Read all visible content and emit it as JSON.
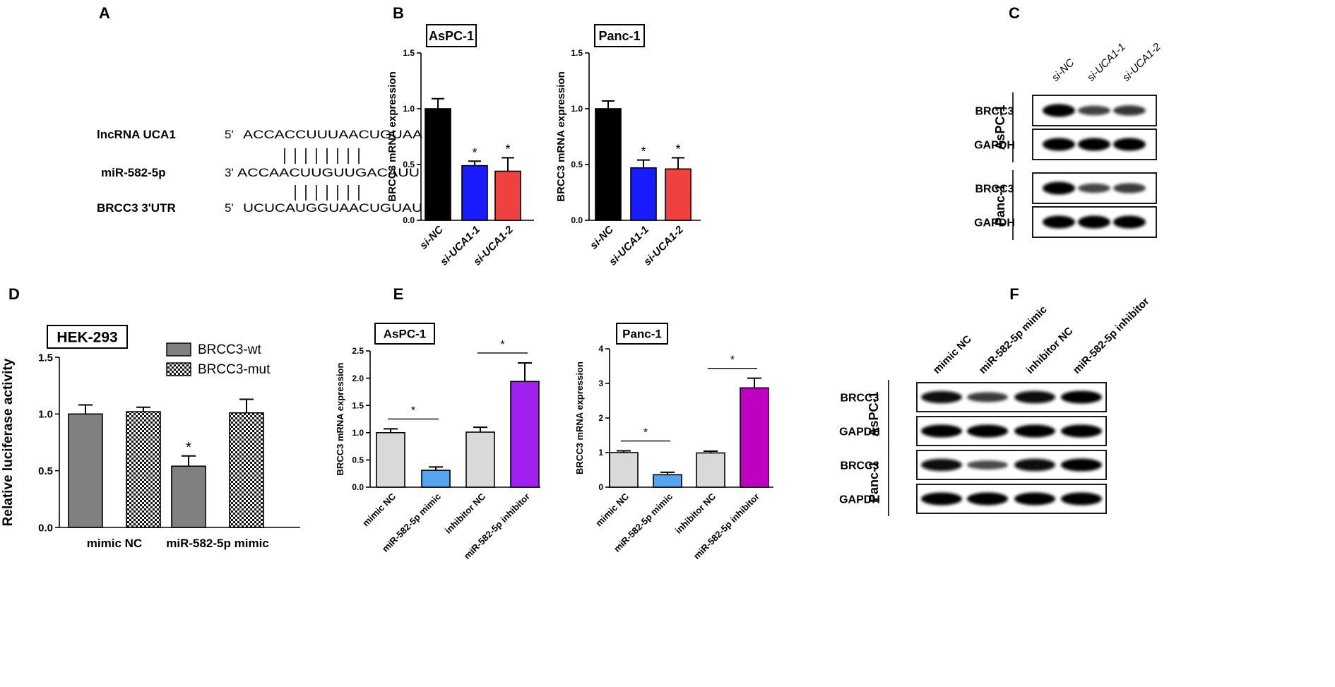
{
  "panels": {
    "A": "A",
    "B": "B",
    "C": "C",
    "D": "D",
    "E": "E",
    "F": "F"
  },
  "panel_a": {
    "rows": [
      {
        "name": "lncRNA UCA1",
        "prefix": "5'",
        "seq": "ACCACCUUUAACUGUAA"
      },
      {
        "name": "miR-582-5p",
        "prefix": "3'",
        "seq": "ACCAACUUGUUGACAUU"
      },
      {
        "name": "BRCC3 3'UTR",
        "prefix": "5'",
        "seq": "UCUCAUGGUAACUGUAU"
      }
    ],
    "pairs_top": 8,
    "pairs_bottom": 7
  },
  "blots": {
    "c": {
      "lanes": [
        "si-NC",
        "si-UCA1-1",
        "si-UCA1-2"
      ],
      "groups": [
        {
          "cell": "AsPC-1",
          "rows": [
            {
              "label": "BRCC3",
              "intensity": [
                1.0,
                0.45,
                0.55
              ]
            },
            {
              "label": "GAPDH",
              "intensity": [
                1,
                1,
                1
              ]
            }
          ]
        },
        {
          "cell": "Panc-1",
          "rows": [
            {
              "label": "BRCC3",
              "intensity": [
                1.0,
                0.4,
                0.5
              ]
            },
            {
              "label": "GAPDH",
              "intensity": [
                1,
                1,
                1
              ]
            }
          ]
        }
      ]
    },
    "f": {
      "lanes": [
        "mimic NC",
        "miR-582-5p mimic",
        "inhibitor NC",
        "miR-582-5p inhibitor"
      ],
      "groups": [
        {
          "cell": "AsPC-1",
          "rows": [
            {
              "label": "BRCC3",
              "intensity": [
                0.9,
                0.5,
                0.95,
                1.0
              ]
            },
            {
              "label": "GAPDH",
              "intensity": [
                1,
                1,
                1,
                1
              ]
            }
          ]
        },
        {
          "cell": "Panc-1",
          "rows": [
            {
              "label": "BRCC3",
              "intensity": [
                0.9,
                0.35,
                0.95,
                1.0
              ]
            },
            {
              "label": "GAPDH",
              "intensity": [
                1,
                1,
                1,
                1
              ]
            }
          ]
        }
      ]
    }
  },
  "chart_data": [
    {
      "id": "b1",
      "type": "bar",
      "title": "AsPC-1",
      "ylabel": "BRCC3 mRNA expression",
      "ylim": [
        0,
        1.5
      ],
      "yticks": [
        0.0,
        0.5,
        1.0,
        1.5
      ],
      "tick_decimals": 1,
      "categories": [
        "si-NC",
        "si-UCA1-1",
        "si-UCA1-2"
      ],
      "values": [
        1.0,
        0.49,
        0.44
      ],
      "errors": [
        0.09,
        0.04,
        0.12
      ],
      "colors": [
        "#000000",
        "#1a1aff",
        "#f04040"
      ],
      "sig": [
        "",
        "*",
        "*"
      ]
    },
    {
      "id": "b2",
      "type": "bar",
      "title": "Panc-1",
      "ylabel": "BRCC3 mRNA expression",
      "ylim": [
        0,
        1.5
      ],
      "yticks": [
        0.0,
        0.5,
        1.0,
        1.5
      ],
      "tick_decimals": 1,
      "categories": [
        "si-NC",
        "si-UCA1-1",
        "si-UCA1-2"
      ],
      "values": [
        1.0,
        0.47,
        0.46
      ],
      "errors": [
        0.07,
        0.07,
        0.1
      ],
      "colors": [
        "#000000",
        "#1a1aff",
        "#f04040"
      ],
      "sig": [
        "",
        "*",
        "*"
      ]
    },
    {
      "id": "d",
      "type": "bar",
      "title": "HEK-293",
      "ylabel": "Relative luciferase activity",
      "ylim": [
        0,
        1.5
      ],
      "yticks": [
        0.0,
        0.5,
        1.0,
        1.5
      ],
      "tick_decimals": 1,
      "categories": [
        "mimic NC",
        "miR-582-5p mimic"
      ],
      "series": [
        {
          "name": "BRCC3-wt",
          "values": [
            1.0,
            0.54
          ],
          "errors": [
            0.08,
            0.09
          ],
          "sig": [
            "",
            "*"
          ]
        },
        {
          "name": "BRCC3-mut",
          "values": [
            1.02,
            1.01
          ],
          "errors": [
            0.04,
            0.12
          ],
          "sig": [
            "",
            ""
          ]
        }
      ]
    },
    {
      "id": "e1",
      "type": "bar",
      "title": "AsPC-1",
      "ylabel": "BRCC3 mRNA expression",
      "ylim": [
        0,
        2.5
      ],
      "yticks": [
        0.0,
        0.5,
        1.0,
        1.5,
        2.0,
        2.5
      ],
      "tick_decimals": 1,
      "categories": [
        "mimic NC",
        "miR-582-5p mimic",
        "inhibitor NC",
        "miR-582-5p inhibitor"
      ],
      "values": [
        1.0,
        0.31,
        1.01,
        1.94
      ],
      "errors": [
        0.07,
        0.06,
        0.09,
        0.34
      ],
      "colors": [
        "#d9d9d9",
        "#55a4f0",
        "#d9d9d9",
        "#a020f0"
      ],
      "sig_pairs": [
        {
          "from": 0,
          "to": 1,
          "label": "*"
        },
        {
          "from": 2,
          "to": 3,
          "label": "*"
        }
      ]
    },
    {
      "id": "e2",
      "type": "bar",
      "title": "Panc-1",
      "ylabel": "BRCC3 mRNA expression",
      "ylim": [
        0,
        4
      ],
      "yticks": [
        0,
        1,
        2,
        3,
        4
      ],
      "tick_decimals": 0,
      "categories": [
        "mimic NC",
        "miR-582-5p mimic",
        "inhibitor NC",
        "miR-582-5p inhibitor"
      ],
      "values": [
        1.0,
        0.36,
        0.99,
        2.87
      ],
      "errors": [
        0.05,
        0.07,
        0.05,
        0.28
      ],
      "colors": [
        "#d9d9d9",
        "#55a4f0",
        "#d9d9d9",
        "#c000c0"
      ],
      "sig_pairs": [
        {
          "from": 0,
          "to": 1,
          "label": "*"
        },
        {
          "from": 2,
          "to": 3,
          "label": "*"
        }
      ]
    }
  ]
}
